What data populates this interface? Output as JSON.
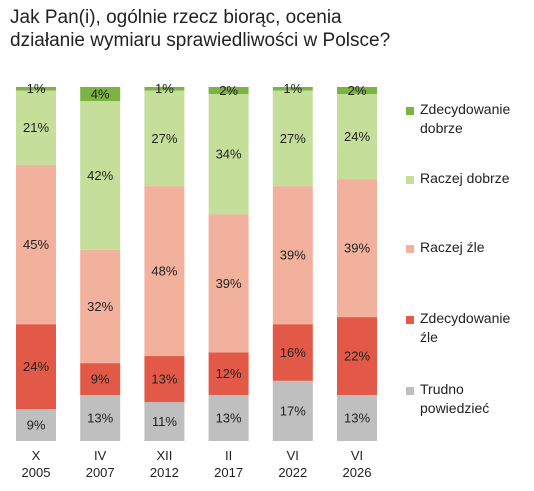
{
  "chart_data": {
    "type": "stacked_bar",
    "title": "Jak Pan(i), ogólnie rzecz biorąc, ocenia działanie wymiaru sprawiedliwości w Polsce?",
    "categories": [
      "X\n2005",
      "IV\n2007",
      "XII\n2012",
      "II\n2017",
      "VI\n2022",
      "VI\n2026"
    ],
    "ylim": [
      0,
      100
    ],
    "series": [
      {
        "name": "Zdecydowanie dobrze",
        "color": "#7cb342",
        "values": [
          1,
          4,
          1,
          2,
          1,
          2
        ],
        "value_labels": [
          "1%",
          "4%",
          "1%",
          "2%",
          "1%",
          "2%"
        ]
      },
      {
        "name": "Raczej dobrze",
        "color": "#c5df9a",
        "values": [
          21,
          42,
          27,
          34,
          27,
          24
        ],
        "value_labels": [
          "21%",
          "42%",
          "27%",
          "34%",
          "27%",
          "24%"
        ]
      },
      {
        "name": "Raczej źle",
        "color": "#f1b19d",
        "values": [
          45,
          32,
          48,
          39,
          39,
          39
        ],
        "value_labels": [
          "45%",
          "32%",
          "48%",
          "39%",
          "39%",
          "39%"
        ]
      },
      {
        "name": "Zdecydowanie źle",
        "color": "#e25a47",
        "values": [
          24,
          9,
          13,
          12,
          16,
          22
        ],
        "value_labels": [
          "24%",
          "9%",
          "13%",
          "12%",
          "16%",
          "22%"
        ]
      },
      {
        "name": "Trudno powiedzieć",
        "color": "#bfbfbf",
        "values": [
          9,
          13,
          11,
          13,
          17,
          13
        ],
        "value_labels": [
          "9%",
          "13%",
          "11%",
          "13%",
          "17%",
          "13%"
        ]
      }
    ],
    "legend": "right"
  }
}
